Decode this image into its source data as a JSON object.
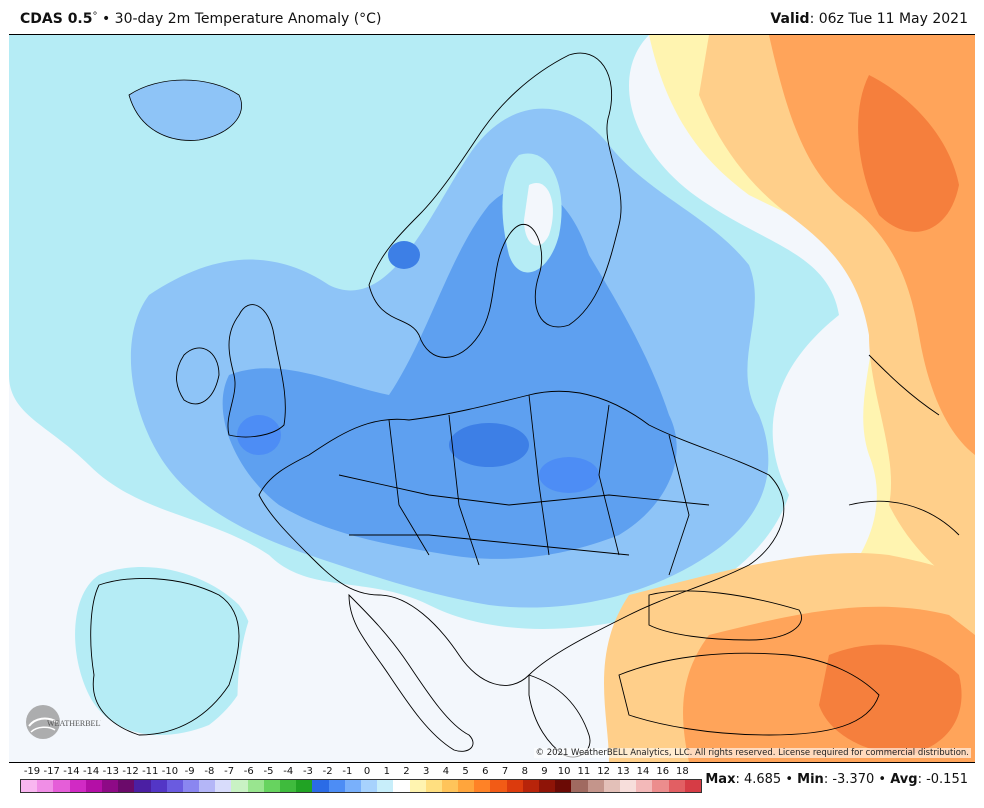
{
  "header": {
    "model": "CDAS 0.5",
    "degree_mark": "°",
    "separator": "•",
    "title": "30-day 2m Temperature Anomaly (°C)",
    "valid_label": "Valid",
    "valid_value": ": 06z Tue 11 May 2021"
  },
  "map": {
    "copyright": "© 2021 WeatherBELL Analytics, LLC. All rights reserved. License required for commercial distribution.",
    "logo_text": "WEATHERBELL"
  },
  "colorbar": {
    "labels": [
      "-19",
      "-17",
      "-14",
      "-14",
      "-13",
      "-12",
      "-11",
      "-10",
      "-9",
      "-8",
      "-7",
      "-6",
      "-5",
      "-4",
      "-3",
      "-2",
      "-1",
      "0",
      "1",
      "2",
      "3",
      "4",
      "5",
      "6",
      "7",
      "8",
      "9",
      "10",
      "11",
      "12",
      "13",
      "14",
      "16",
      "18"
    ],
    "colors": [
      "#f9b6f0",
      "#f08ee6",
      "#e55ed8",
      "#d12ac4",
      "#b40fa6",
      "#8e0a86",
      "#6b0a6a",
      "#4b1fa3",
      "#5336c6",
      "#6a5be0",
      "#8a86f0",
      "#b4b6f7",
      "#d8dcfb",
      "#c9f2c4",
      "#99e58f",
      "#67d35f",
      "#3fbb3d",
      "#21a324",
      "#2b6be6",
      "#4d8df5",
      "#79b0fb",
      "#a7d2fd",
      "#c8eefa",
      "#ffffff",
      "#fff4b0",
      "#ffdf80",
      "#ffc45a",
      "#ffa53c",
      "#ff8226",
      "#f25b16",
      "#dc3b0d",
      "#b8240a",
      "#8f1407",
      "#6b0a05",
      "#a06a60",
      "#c4958b",
      "#e3c0b8",
      "#f7dedb",
      "#f3b9b9",
      "#ec8d8d",
      "#e25f63",
      "#d63c45"
    ]
  },
  "stats": {
    "max_label": "Max",
    "max_value": ": 4.685",
    "min_label": "Min",
    "min_value": ": -3.370",
    "avg_label": "Avg",
    "avg_value": ": -0.151",
    "sep": "•"
  },
  "legend_colors": {
    "light_cyan": "#b5ecf5",
    "light_blue": "#8ec4f7",
    "mid_blue": "#5ea0f0",
    "deep_blue": "#3d7fe6",
    "pale_white": "#f3f7fc",
    "pale_yellow": "#fff4b0",
    "light_orange": "#ffcf8a",
    "orange": "#ffa45a",
    "deep_orange": "#f57f3d"
  }
}
